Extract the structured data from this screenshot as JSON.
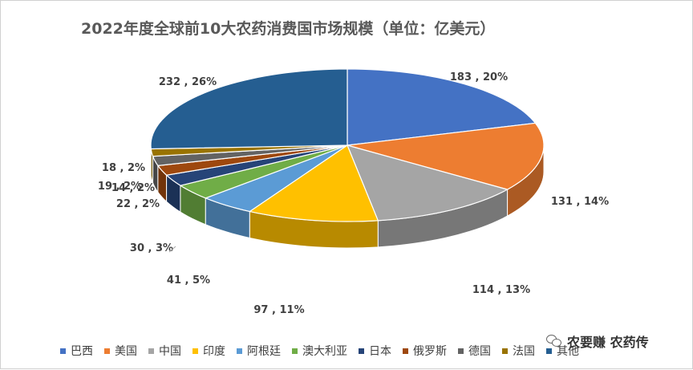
{
  "chart_data": {
    "type": "pie",
    "title": "2022年度全球前10大农药消费国市场规模（单位：亿美元）",
    "categories": [
      "巴西",
      "美国",
      "中国",
      "印度",
      "阿根廷",
      "澳大利亚",
      "日本",
      "俄罗斯",
      "德国",
      "法国",
      "其他"
    ],
    "values": [
      183,
      131,
      114,
      97,
      41,
      30,
      22,
      19,
      18,
      14,
      232
    ],
    "data_labels": [
      "183 , 20%",
      "131 , 14%",
      "114 , 13%",
      "97 , 11%",
      "41 , 5%",
      "30 , 3%",
      "22 , 2%",
      "19 , 2%",
      "18 , 2%",
      "14 , 2%",
      "232 , 26%"
    ],
    "colors": [
      "#4472C4",
      "#ED7D31",
      "#A5A5A5",
      "#FFC000",
      "#5B9BD5",
      "#70AD47",
      "#264478",
      "#9E480E",
      "#636363",
      "#997300",
      "#255E91"
    ],
    "legend_position": "bottom"
  },
  "watermark": {
    "text": "农要赚 农药传",
    "icon": "wechat-icon"
  }
}
